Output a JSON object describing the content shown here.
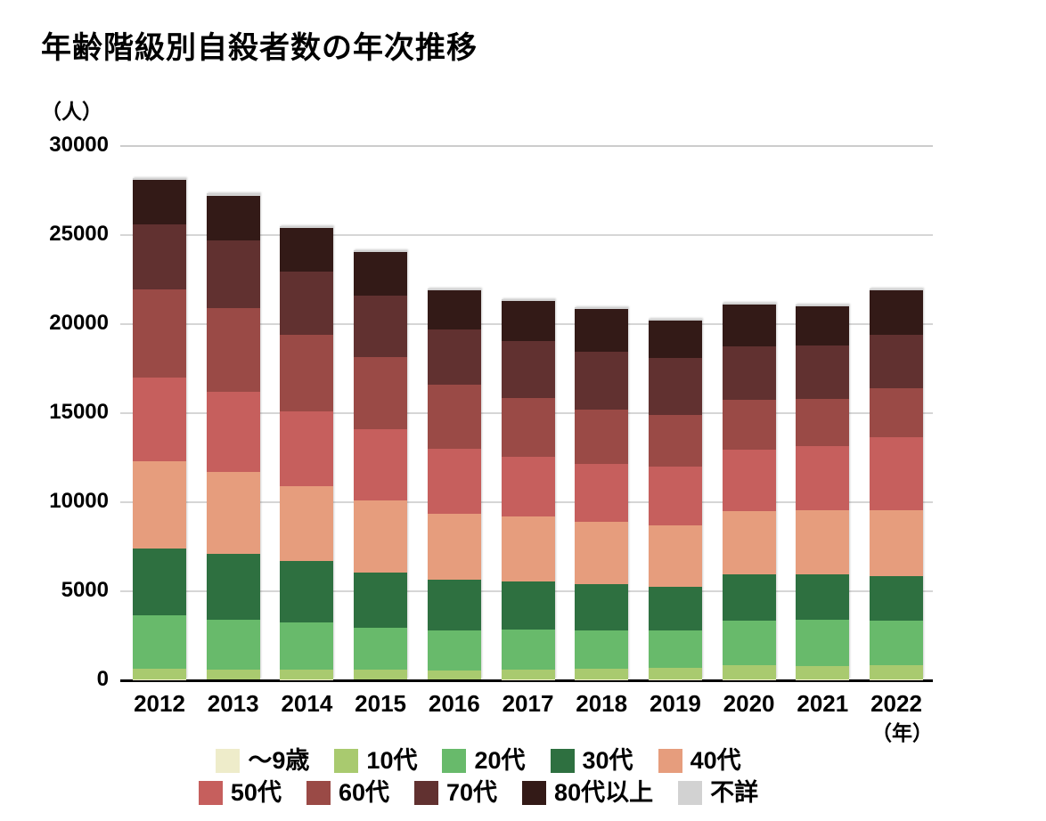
{
  "title": "年齢階級別自殺者数の年次推移",
  "y_axis_unit": "（人）",
  "x_axis_unit": "（年）",
  "chart_data": {
    "type": "bar",
    "stacked": true,
    "title": "年齢階級別自殺者数の年次推移",
    "xlabel": "年",
    "ylabel": "人",
    "ylim": [
      0,
      30000
    ],
    "y_ticks": [
      30000,
      25000,
      20000,
      15000,
      10000,
      5000,
      0
    ],
    "grid": true,
    "legend_position": "bottom",
    "x": [
      "2012",
      "2013",
      "2014",
      "2015",
      "2016",
      "2017",
      "2018",
      "2019",
      "2020",
      "2021",
      "2022"
    ],
    "series": [
      {
        "name": "～9歳",
        "slug": "age-0-9",
        "color": "#eeecca",
        "values": [
          5,
          3,
          5,
          3,
          2,
          6,
          7,
          8,
          7,
          11,
          15
        ]
      },
      {
        "name": "10代",
        "slug": "age-10s",
        "color": "#a9ca6f",
        "values": [
          582,
          562,
          533,
          551,
          518,
          561,
          592,
          651,
          770,
          739,
          783
        ]
      },
      {
        "name": "20代",
        "slug": "age-20s",
        "color": "#68ba6b",
        "values": [
          3000,
          2801,
          2684,
          2352,
          2235,
          2213,
          2152,
          2117,
          2521,
          2611,
          2483
        ]
      },
      {
        "name": "30代",
        "slug": "age-30s",
        "color": "#2e7040",
        "values": [
          3781,
          3705,
          3413,
          3087,
          2824,
          2703,
          2611,
          2437,
          2610,
          2554,
          2545
        ]
      },
      {
        "name": "40代",
        "slug": "age-40s",
        "color": "#e69d7d",
        "values": [
          4900,
          4589,
          4234,
          4069,
          3739,
          3668,
          3498,
          3426,
          3568,
          3575,
          3665
        ]
      },
      {
        "name": "50代",
        "slug": "age-50s",
        "color": "#c65f5d",
        "values": [
          4668,
          4484,
          4181,
          3979,
          3631,
          3339,
          3225,
          3307,
          3425,
          3618,
          4093
        ]
      },
      {
        "name": "60代",
        "slug": "age-60s",
        "color": "#9a4a46",
        "values": [
          4976,
          4716,
          4325,
          4079,
          3626,
          3336,
          3079,
          2902,
          2795,
          2637,
          2765
        ]
      },
      {
        "name": "70代",
        "slug": "age-70s",
        "color": "#613130",
        "values": [
          3661,
          3785,
          3508,
          3451,
          3069,
          3163,
          3258,
          3212,
          3026,
          3009,
          2994
        ]
      },
      {
        "name": "80代以上",
        "slug": "age-80-plus",
        "color": "#331a17",
        "values": [
          2459,
          2529,
          2475,
          2412,
          2223,
          2262,
          2383,
          2085,
          2330,
          2214,
          2490
        ]
      },
      {
        "name": "不詳",
        "slug": "unknown",
        "color": "#d2d2d2",
        "values": [
          110,
          109,
          69,
          42,
          30,
          70,
          35,
          24,
          29,
          39,
          48
        ]
      }
    ],
    "legend_rows": [
      [
        0,
        1,
        2,
        3,
        4
      ],
      [
        5,
        6,
        7,
        8,
        9
      ]
    ]
  },
  "layout_note_values_are_persons": "bars stacked bottom-to-top in series order"
}
